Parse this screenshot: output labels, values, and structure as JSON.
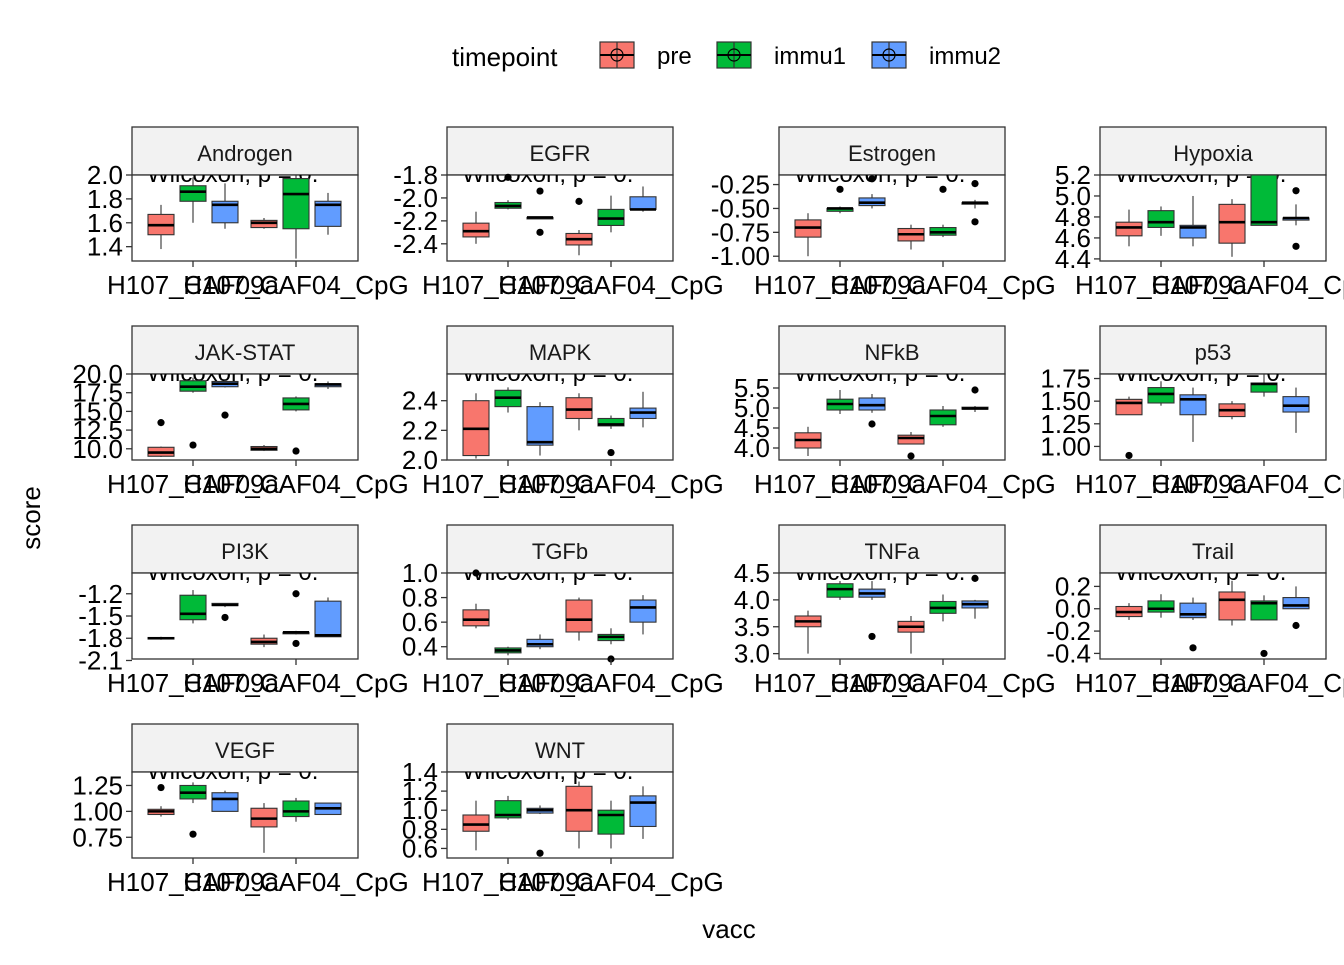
{
  "legend": {
    "title": "timepoint",
    "entries": [
      {
        "label": "pre",
        "color": "#F8766D"
      },
      {
        "label": "immu1",
        "color": "#00BA38"
      },
      {
        "label": "immu2",
        "color": "#619CFF"
      }
    ]
  },
  "axes": {
    "xlabel": "vacc",
    "ylabel": "score"
  },
  "stat_label": "Wilcoxon, p = 0.",
  "chart_data": {
    "type": "boxplot",
    "faceted": true,
    "facet_by": "pathway",
    "x_categories": [
      "H107_CAF09a",
      "H107_CAF04_CpG"
    ],
    "groups": [
      "pre",
      "immu1",
      "immu2"
    ],
    "xlabel": "vacc",
    "ylabel": "score",
    "legend_position": "top",
    "panels": [
      {
        "title": "Androgen",
        "ylim": [
          1.28,
          2.0
        ],
        "yticks": [
          1.4,
          1.6,
          1.8,
          2.0
        ],
        "ytick_labels": [
          "1.4",
          "1.6",
          "1.8",
          "2.0"
        ],
        "boxes": [
          [
            [
              1.38,
              1.5,
              1.58,
              1.67,
              1.75
            ],
            [
              1.6,
              1.78,
              1.86,
              1.91,
              1.98
            ],
            [
              1.55,
              1.6,
              1.75,
              1.78,
              1.93
            ]
          ],
          [
            [
              1.55,
              1.56,
              1.6,
              1.62,
              1.64
            ],
            [
              1.3,
              1.55,
              1.84,
              1.97,
              2.0
            ],
            [
              1.5,
              1.57,
              1.75,
              1.78,
              1.85
            ]
          ]
        ],
        "outliers": []
      },
      {
        "title": "EGFR",
        "ylim": [
          -2.55,
          -1.8
        ],
        "yticks": [
          -2.4,
          -2.2,
          -2.0,
          -1.8
        ],
        "ytick_labels": [
          "-2.4",
          "-2.2",
          "-2.0",
          "-1.8"
        ],
        "boxes": [
          [
            [
              -2.4,
              -2.34,
              -2.29,
              -2.22,
              -2.12
            ],
            [
              -2.1,
              -2.09,
              -2.07,
              -2.04,
              -2.02
            ],
            [
              -2.17,
              -2.17,
              -2.17,
              -2.17,
              -2.17
            ]
          ],
          [
            [
              -2.5,
              -2.41,
              -2.36,
              -2.31,
              -2.28
            ],
            [
              -2.3,
              -2.24,
              -2.18,
              -2.1,
              -1.98
            ],
            [
              -2.12,
              -2.1,
              -2.1,
              -1.99,
              -1.9
            ]
          ]
        ],
        "outliers": [
          [
            0,
            1,
            -1.82
          ],
          [
            0,
            2,
            -1.94
          ],
          [
            0,
            2,
            -2.3
          ],
          [
            1,
            0,
            -2.03
          ]
        ]
      },
      {
        "title": "Estrogen",
        "ylim": [
          -1.05,
          -0.15
        ],
        "yticks": [
          -1.0,
          -0.75,
          -0.5,
          -0.25
        ],
        "ytick_labels": [
          "-1.00",
          "-0.75",
          "-0.50",
          "-0.25"
        ],
        "boxes": [
          [
            [
              -1.0,
              -0.8,
              -0.7,
              -0.62,
              -0.55
            ],
            [
              -0.55,
              -0.53,
              -0.5,
              -0.5,
              -0.48
            ],
            [
              -0.5,
              -0.47,
              -0.44,
              -0.39,
              -0.35
            ]
          ],
          [
            [
              -0.93,
              -0.84,
              -0.77,
              -0.71,
              -0.67
            ],
            [
              -0.8,
              -0.78,
              -0.75,
              -0.7,
              -0.67
            ],
            [
              -0.5,
              -0.45,
              -0.44,
              -0.44,
              -0.41
            ]
          ]
        ],
        "outliers": [
          [
            0,
            1,
            -0.3
          ],
          [
            0,
            2,
            -0.19
          ],
          [
            1,
            1,
            -0.3
          ],
          [
            1,
            2,
            -0.24
          ],
          [
            1,
            2,
            -0.64
          ]
        ]
      },
      {
        "title": "Hypoxia",
        "ylim": [
          4.38,
          5.2
        ],
        "yticks": [
          4.4,
          4.6,
          4.8,
          5.0,
          5.2
        ],
        "ytick_labels": [
          "4.4",
          "4.6",
          "4.8",
          "5.0",
          "5.2"
        ],
        "boxes": [
          [
            [
              4.52,
              4.62,
              4.7,
              4.75,
              4.87
            ],
            [
              4.62,
              4.7,
              4.75,
              4.86,
              4.9
            ],
            [
              4.52,
              4.6,
              4.7,
              4.72,
              5.0
            ]
          ],
          [
            [
              4.42,
              4.55,
              4.75,
              4.92,
              4.97
            ],
            [
              4.72,
              4.72,
              4.75,
              5.2,
              5.2
            ],
            [
              4.72,
              4.77,
              4.79,
              4.79,
              4.92
            ]
          ]
        ],
        "outliers": [
          [
            1,
            2,
            5.05
          ],
          [
            1,
            2,
            4.52
          ]
        ]
      },
      {
        "title": "JAK-STAT",
        "ylim": [
          8.5,
          20.0
        ],
        "yticks": [
          10.0,
          12.5,
          15.0,
          17.5,
          20.0
        ],
        "ytick_labels": [
          "10.0",
          "12.5",
          "15.0",
          "17.5",
          "20.0"
        ],
        "boxes": [
          [
            [
              8.9,
              9.0,
              9.5,
              10.2,
              10.3
            ],
            [
              17.5,
              17.7,
              18.3,
              19.1,
              19.5
            ],
            [
              18.2,
              18.3,
              18.7,
              19.0,
              19.3
            ]
          ],
          [
            [
              9.7,
              9.8,
              10.0,
              10.3,
              10.5
            ],
            [
              15.0,
              15.2,
              16.0,
              16.8,
              17.0
            ],
            [
              18.0,
              18.3,
              18.6,
              18.7,
              19.0
            ]
          ]
        ],
        "outliers": [
          [
            0,
            0,
            13.5
          ],
          [
            0,
            1,
            10.5
          ],
          [
            0,
            2,
            14.5
          ],
          [
            1,
            1,
            9.7
          ]
        ]
      },
      {
        "title": "MAPK",
        "ylim": [
          2.0,
          2.58
        ],
        "yticks": [
          2.0,
          2.2,
          2.4
        ],
        "ytick_labels": [
          "2.0",
          "2.2",
          "2.4"
        ],
        "boxes": [
          [
            [
              2.01,
              2.03,
              2.21,
              2.4,
              2.45
            ],
            [
              2.32,
              2.36,
              2.42,
              2.47,
              2.49
            ],
            [
              2.03,
              2.1,
              2.12,
              2.36,
              2.39
            ]
          ],
          [
            [
              2.2,
              2.28,
              2.34,
              2.42,
              2.45
            ],
            [
              2.21,
              2.23,
              2.24,
              2.28,
              2.3
            ],
            [
              2.22,
              2.28,
              2.32,
              2.35,
              2.46
            ]
          ]
        ],
        "outliers": [
          [
            1,
            1,
            2.05
          ]
        ]
      },
      {
        "title": "NFkB",
        "ylim": [
          3.7,
          5.85
        ],
        "yticks": [
          4.0,
          4.5,
          5.0,
          5.5
        ],
        "ytick_labels": [
          "4.0",
          "4.5",
          "5.0",
          "5.5"
        ],
        "boxes": [
          [
            [
              3.8,
              4.0,
              4.2,
              4.38,
              4.53
            ],
            [
              4.85,
              4.95,
              5.1,
              5.22,
              5.45
            ],
            [
              4.88,
              4.95,
              5.07,
              5.25,
              5.35
            ]
          ],
          [
            [
              4.15,
              4.1,
              4.25,
              4.32,
              4.4
            ],
            [
              4.53,
              4.58,
              4.8,
              4.95,
              5.05
            ],
            [
              4.9,
              4.97,
              4.99,
              5.02,
              5.05
            ]
          ]
        ],
        "outliers": [
          [
            0,
            2,
            4.6
          ],
          [
            1,
            0,
            3.8
          ],
          [
            1,
            2,
            5.45
          ]
        ]
      },
      {
        "title": "p53",
        "ylim": [
          0.85,
          1.8
        ],
        "yticks": [
          1.0,
          1.25,
          1.5,
          1.75
        ],
        "ytick_labels": [
          "1.00",
          "1.25",
          "1.50",
          "1.75"
        ],
        "boxes": [
          [
            [
              1.35,
              1.35,
              1.48,
              1.52,
              1.55
            ],
            [
              1.45,
              1.48,
              1.58,
              1.65,
              1.72
            ],
            [
              1.05,
              1.35,
              1.52,
              1.57,
              1.65
            ]
          ],
          [
            [
              1.3,
              1.33,
              1.4,
              1.47,
              1.5
            ],
            [
              1.55,
              1.6,
              1.69,
              1.7,
              1.8
            ],
            [
              1.15,
              1.38,
              1.45,
              1.55,
              1.65
            ]
          ]
        ],
        "outliers": [
          [
            0,
            0,
            0.9
          ]
        ]
      },
      {
        "title": "PI3K",
        "ylim": [
          -2.08,
          -0.92
        ],
        "yticks": [
          -2.1,
          -1.8,
          -1.5,
          -1.2
        ],
        "ytick_labels": [
          "-2.1",
          "-1.8",
          "-1.5",
          "-1.2"
        ],
        "boxes": [
          [
            [
              -1.82,
              -1.81,
              -1.8,
              -1.79,
              -1.78
            ],
            [
              -1.6,
              -1.55,
              -1.47,
              -1.22,
              -1.15
            ],
            [
              -1.38,
              -1.36,
              -1.35,
              -1.33,
              -1.33
            ]
          ],
          [
            [
              -1.92,
              -1.88,
              -1.85,
              -1.8,
              -1.75
            ],
            [
              -1.75,
              -1.74,
              -1.72,
              -1.72,
              -1.7
            ],
            [
              -1.78,
              -1.78,
              -1.76,
              -1.3,
              -1.25
            ]
          ]
        ],
        "outliers": [
          [
            0,
            2,
            -1.52
          ],
          [
            1,
            1,
            -1.2
          ],
          [
            1,
            1,
            -1.87
          ]
        ]
      },
      {
        "title": "TGFb",
        "ylim": [
          0.3,
          1.0
        ],
        "yticks": [
          0.4,
          0.6,
          0.8,
          1.0
        ],
        "ytick_labels": [
          "0.4",
          "0.6",
          "0.8",
          "1.0"
        ],
        "boxes": [
          [
            [
              0.55,
              0.57,
              0.62,
              0.7,
              0.75
            ],
            [
              0.33,
              0.35,
              0.37,
              0.39,
              0.4
            ],
            [
              0.38,
              0.4,
              0.42,
              0.46,
              0.5
            ]
          ],
          [
            [
              0.45,
              0.52,
              0.62,
              0.78,
              0.8
            ],
            [
              0.42,
              0.45,
              0.48,
              0.5,
              0.55
            ],
            [
              0.5,
              0.6,
              0.72,
              0.78,
              0.82
            ]
          ]
        ],
        "outliers": [
          [
            0,
            0,
            1.0
          ],
          [
            1,
            1,
            0.3
          ]
        ]
      },
      {
        "title": "TNFa",
        "ylim": [
          2.9,
          4.5
        ],
        "yticks": [
          3.0,
          3.5,
          4.0,
          4.5
        ],
        "ytick_labels": [
          "3.0",
          "3.5",
          "4.0",
          "4.5"
        ],
        "boxes": [
          [
            [
              3.0,
              3.5,
              3.6,
              3.7,
              3.8
            ],
            [
              4.0,
              4.05,
              4.2,
              4.3,
              4.35
            ],
            [
              4.0,
              4.05,
              4.12,
              4.2,
              4.35
            ]
          ],
          [
            [
              3.0,
              3.4,
              3.5,
              3.6,
              3.7
            ],
            [
              3.6,
              3.75,
              3.85,
              3.97,
              4.1
            ],
            [
              3.65,
              3.85,
              3.92,
              3.98,
              4.0
            ]
          ]
        ],
        "outliers": [
          [
            0,
            2,
            3.32
          ],
          [
            1,
            2,
            4.4
          ]
        ]
      },
      {
        "title": "Trail",
        "ylim": [
          -0.45,
          0.32
        ],
        "yticks": [
          -0.4,
          -0.2,
          0.0,
          0.2
        ],
        "ytick_labels": [
          "-0.4",
          "-0.2",
          "0.0",
          "0.2"
        ],
        "boxes": [
          [
            [
              -0.1,
              -0.07,
              -0.03,
              0.02,
              0.05
            ],
            [
              -0.08,
              -0.03,
              0.0,
              0.07,
              0.13
            ],
            [
              -0.1,
              -0.08,
              -0.05,
              0.05,
              0.1
            ]
          ],
          [
            [
              -0.15,
              -0.1,
              0.08,
              0.15,
              0.25
            ],
            [
              -0.08,
              -0.1,
              0.05,
              0.07,
              0.12
            ],
            [
              0.0,
              0.0,
              0.03,
              0.1,
              0.2
            ]
          ]
        ],
        "outliers": [
          [
            0,
            2,
            -0.35
          ],
          [
            1,
            1,
            -0.4
          ],
          [
            1,
            2,
            -0.15
          ]
        ]
      },
      {
        "title": "VEGF",
        "ylim": [
          0.55,
          1.38
        ],
        "yticks": [
          0.75,
          1.0,
          1.25
        ],
        "ytick_labels": [
          "0.75",
          "1.00",
          "1.25"
        ],
        "boxes": [
          [
            [
              0.95,
              0.97,
              1.0,
              1.02,
              1.05
            ],
            [
              1.08,
              1.12,
              1.18,
              1.25,
              1.28
            ],
            [
              1.0,
              1.0,
              1.12,
              1.18,
              1.2
            ]
          ],
          [
            [
              0.6,
              0.85,
              0.93,
              1.03,
              1.08
            ],
            [
              0.9,
              0.95,
              1.0,
              1.1,
              1.13
            ],
            [
              0.97,
              0.97,
              1.03,
              1.08,
              1.08
            ]
          ]
        ],
        "outliers": [
          [
            0,
            0,
            1.23
          ],
          [
            0,
            1,
            0.78
          ]
        ]
      },
      {
        "title": "WNT",
        "ylim": [
          0.5,
          1.4
        ],
        "yticks": [
          0.6,
          0.8,
          1.0,
          1.2,
          1.4
        ],
        "ytick_labels": [
          "0.6",
          "0.8",
          "1.0",
          "1.2",
          "1.4"
        ],
        "boxes": [
          [
            [
              0.58,
              0.78,
              0.85,
              0.95,
              1.1
            ],
            [
              0.9,
              0.92,
              0.95,
              1.1,
              1.15
            ],
            [
              0.96,
              0.97,
              1.0,
              1.02,
              1.05
            ]
          ],
          [
            [
              0.6,
              0.78,
              1.0,
              1.25,
              1.3
            ],
            [
              0.6,
              0.75,
              0.95,
              1.0,
              1.1
            ],
            [
              0.7,
              0.83,
              1.08,
              1.15,
              1.25
            ]
          ]
        ],
        "outliers": [
          [
            0,
            2,
            0.55
          ]
        ]
      }
    ]
  }
}
